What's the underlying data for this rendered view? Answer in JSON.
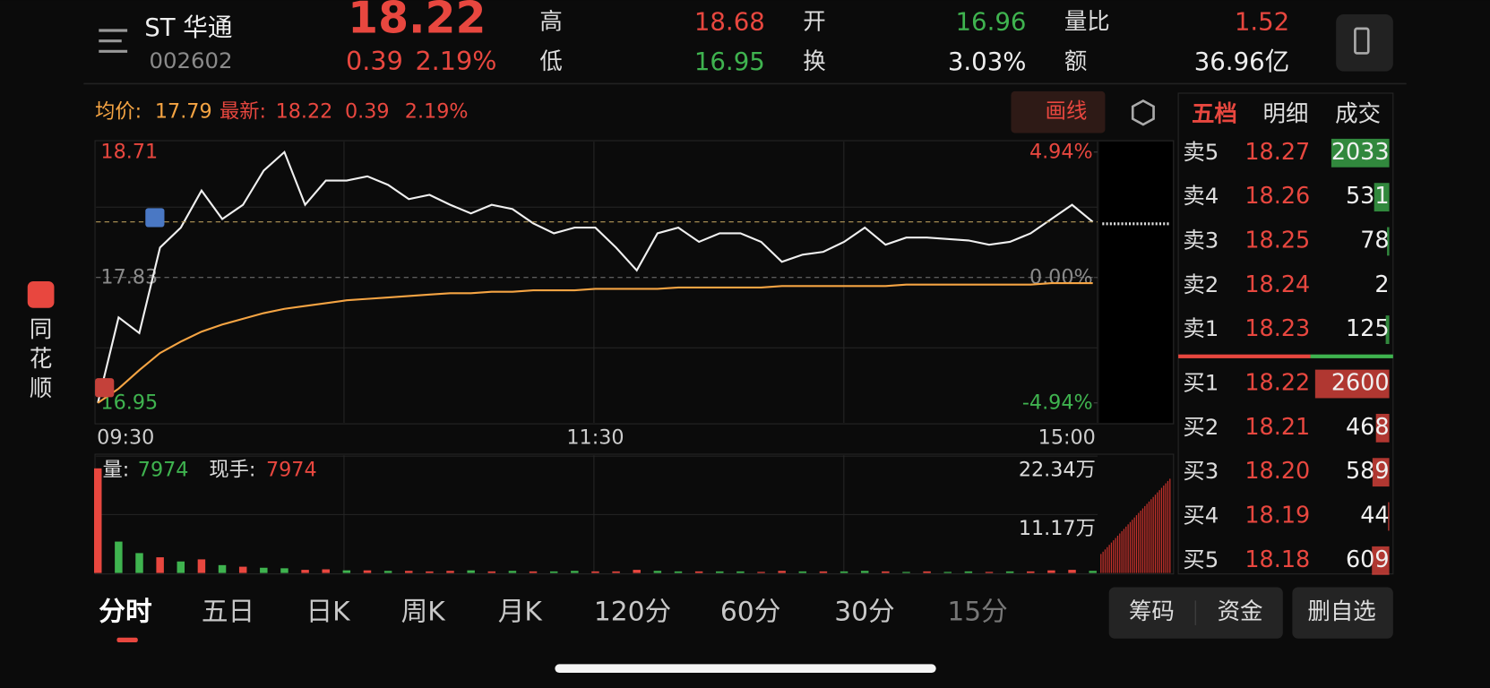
{
  "header": {
    "name": "ST 华通",
    "code": "002602",
    "price": "18.22",
    "change": "0.39",
    "change_pct": "2.19%",
    "stats": [
      {
        "label": "高",
        "value": "18.68"
      },
      {
        "label": "低",
        "value": "16.95"
      },
      {
        "label": "开",
        "value": "16.96"
      },
      {
        "label": "换",
        "value": "3.03%"
      },
      {
        "label": "量比",
        "value": "1.52"
      },
      {
        "label": "额",
        "value": "36.96亿"
      }
    ]
  },
  "sidebar": {
    "brand": [
      "同",
      "花",
      "顺"
    ]
  },
  "info": {
    "avg_label": "均价:",
    "avg": "17.79",
    "last_label": "最新:",
    "last": "18.22",
    "change": "0.39",
    "change_pct": "2.19%",
    "draw_button": "画线"
  },
  "chart_data": {
    "type": "line",
    "categories": [
      "09:30",
      null,
      null,
      null,
      null,
      null,
      null,
      null,
      null,
      null,
      null,
      null,
      null,
      null,
      null,
      null,
      null,
      null,
      null,
      null,
      null,
      null,
      null,
      null,
      "11:30",
      null,
      null,
      null,
      null,
      null,
      null,
      null,
      null,
      null,
      null,
      null,
      null,
      null,
      null,
      null,
      null,
      null,
      null,
      null,
      null,
      null,
      null,
      null,
      "15:00"
    ],
    "series": [
      {
        "name": "最新",
        "color": "#f0f0f0",
        "values": [
          16.95,
          17.55,
          17.44,
          18.04,
          18.18,
          18.44,
          18.24,
          18.34,
          18.58,
          18.71,
          18.34,
          18.51,
          18.51,
          18.54,
          18.48,
          18.38,
          18.41,
          18.34,
          18.28,
          18.34,
          18.31,
          18.21,
          18.14,
          18.18,
          18.18,
          18.04,
          17.88,
          18.14,
          18.18,
          18.08,
          18.14,
          18.14,
          18.08,
          17.94,
          17.99,
          18.01,
          18.08,
          18.18,
          18.06,
          18.11,
          18.11,
          18.1,
          18.09,
          18.06,
          18.08,
          18.14,
          18.24,
          18.34,
          18.22
        ]
      },
      {
        "name": "均价",
        "color": "#f5a443",
        "values": [
          16.95,
          17.05,
          17.18,
          17.3,
          17.38,
          17.45,
          17.5,
          17.54,
          17.58,
          17.61,
          17.63,
          17.65,
          17.67,
          17.68,
          17.69,
          17.7,
          17.71,
          17.72,
          17.72,
          17.73,
          17.73,
          17.74,
          17.74,
          17.74,
          17.75,
          17.75,
          17.75,
          17.75,
          17.76,
          17.76,
          17.76,
          17.76,
          17.76,
          17.77,
          17.77,
          17.77,
          17.77,
          17.77,
          17.77,
          17.78,
          17.78,
          17.78,
          17.78,
          17.78,
          17.78,
          17.78,
          17.79,
          17.79,
          17.79
        ]
      }
    ],
    "ylim": [
      16.95,
      18.71
    ],
    "yticks": [
      18.71,
      17.83,
      16.95
    ],
    "y2lim": [
      -4.94,
      4.94
    ],
    "y2ticks": [
      {
        "value": 4.94,
        "label": "4.94%"
      },
      {
        "value": 0,
        "label": "0.00%"
      },
      {
        "value": -4.94,
        "label": "-4.94%"
      }
    ],
    "grid": true
  },
  "volume": {
    "label": "量:",
    "value": "7974",
    "hand_label": "现手:",
    "hand": "7974",
    "values": [
      200000,
      60000,
      38000,
      30000,
      22000,
      26000,
      15000,
      12000,
      10000,
      9000,
      6000,
      7000,
      5000,
      5000,
      4000,
      4000,
      3000,
      4000,
      5000,
      3000,
      4000,
      3000,
      3000,
      4000,
      3000,
      3000,
      6000,
      4000,
      3000,
      3000,
      3000,
      3000,
      2000,
      4000,
      3000,
      3000,
      3000,
      4000,
      3000,
      2000,
      3000,
      2000,
      3000,
      2000,
      3000,
      3000,
      5000,
      6000,
      4000
    ],
    "colors": [
      "#e8473f",
      "#3fb34f",
      "#3fb34f",
      "#e8473f",
      "#3fb34f",
      "#e8473f",
      "#3fb34f",
      "#e8473f",
      "#3fb34f",
      "#3fb34f",
      "#e8473f",
      "#e8473f",
      "#3fb34f",
      "#e8473f",
      "#3fb34f",
      "#e8473f",
      "#e8473f",
      "#e8473f",
      "#3fb34f",
      "#e8473f",
      "#3fb34f",
      "#e8473f",
      "#3fb34f",
      "#3fb34f",
      "#e8473f",
      "#e8473f",
      "#e8473f",
      "#3fb34f",
      "#3fb34f",
      "#e8473f",
      "#3fb34f",
      "#3fb34f",
      "#e8473f",
      "#e8473f",
      "#3fb34f",
      "#e8473f",
      "#3fb34f",
      "#3fb34f",
      "#e8473f",
      "#3fb34f",
      "#e8473f",
      "#3fb34f",
      "#3fb34f",
      "#e8473f",
      "#3fb34f",
      "#e8473f",
      "#e8473f",
      "#e8473f",
      "#3fb34f"
    ],
    "ylim": [
      0,
      223400
    ],
    "yticks": [
      {
        "value": 223400,
        "label": "22.34万"
      },
      {
        "value": 111700,
        "label": "11.17万"
      }
    ]
  },
  "order_book": {
    "tabs": [
      "五档",
      "明细",
      "成交"
    ],
    "asks": [
      {
        "label": "卖5",
        "price": "18.27",
        "volume": 2033
      },
      {
        "label": "卖4",
        "price": "18.26",
        "volume": 531
      },
      {
        "label": "卖3",
        "price": "18.25",
        "volume": 78
      },
      {
        "label": "卖2",
        "price": "18.24",
        "volume": 2
      },
      {
        "label": "卖1",
        "price": "18.23",
        "volume": 125
      }
    ],
    "bids": [
      {
        "label": "买1",
        "price": "18.22",
        "volume": 2600
      },
      {
        "label": "买2",
        "price": "18.21",
        "volume": 468
      },
      {
        "label": "买3",
        "price": "18.20",
        "volume": 589
      },
      {
        "label": "买4",
        "price": "18.19",
        "volume": 44
      },
      {
        "label": "买5",
        "price": "18.18",
        "volume": 609
      }
    ]
  },
  "tabs": [
    "分时",
    "五日",
    "日K",
    "周K",
    "月K",
    "120分",
    "60分",
    "30分",
    "15分"
  ],
  "buttons": [
    "筹码",
    "资金",
    "删自选"
  ]
}
